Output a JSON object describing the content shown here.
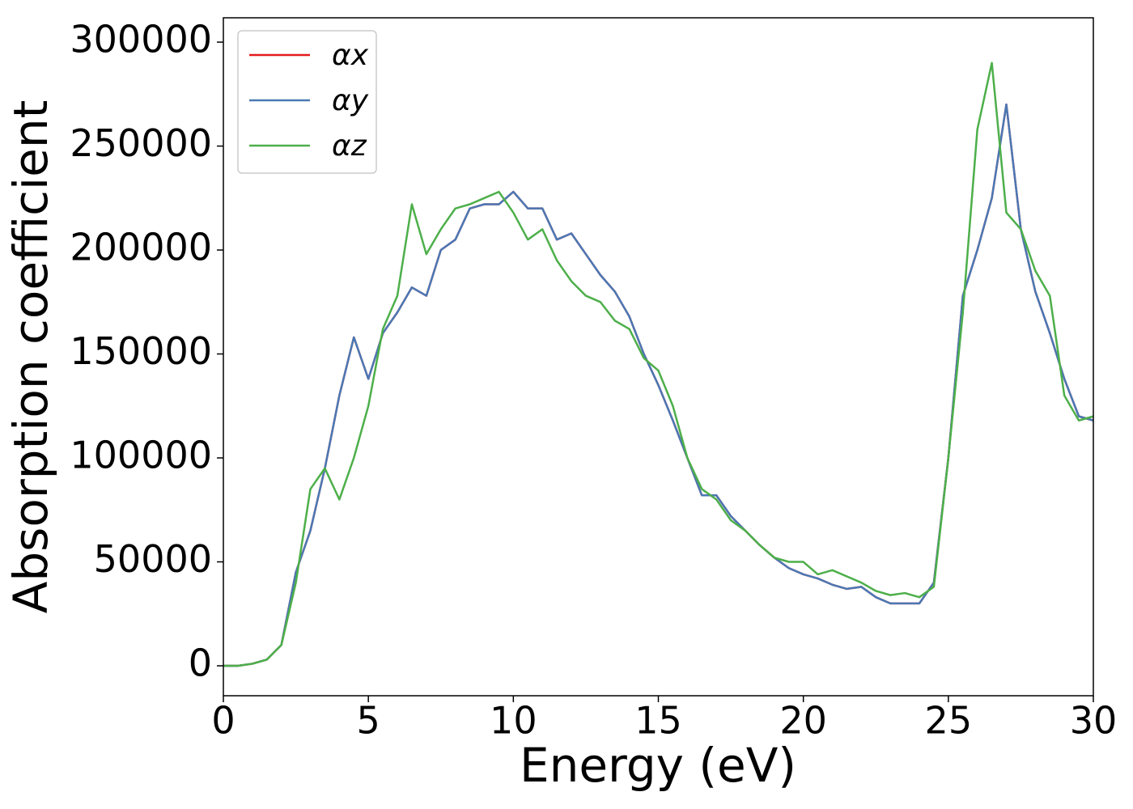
{
  "chart_data": {
    "type": "line",
    "xlabel": "Energy (eV)",
    "ylabel": "Absorption coefficient",
    "x": [
      0,
      0.5,
      1,
      1.5,
      2,
      2.5,
      3,
      3.5,
      4,
      4.5,
      5,
      5.5,
      6,
      6.5,
      7,
      7.5,
      8,
      8.5,
      9,
      9.5,
      10,
      10.5,
      11,
      11.5,
      12,
      12.5,
      13,
      13.5,
      14,
      14.5,
      15,
      15.5,
      16,
      16.5,
      17,
      17.5,
      18,
      18.5,
      19,
      19.5,
      20,
      20.5,
      21,
      21.5,
      22,
      22.5,
      23,
      23.5,
      24,
      24.5,
      25,
      25.5,
      26,
      26.5,
      27,
      27.5,
      28,
      28.5,
      29,
      29.5,
      30
    ],
    "series": [
      {
        "name": "αx",
        "color": "#e41a1c",
        "values": [
          0,
          0,
          1000,
          3000,
          10000,
          45000,
          65000,
          95000,
          130000,
          158000,
          138000,
          160000,
          170000,
          182000,
          178000,
          200000,
          205000,
          220000,
          222000,
          222000,
          228000,
          220000,
          220000,
          205000,
          208000,
          198000,
          188000,
          180000,
          168000,
          150000,
          135000,
          118000,
          100000,
          82000,
          82000,
          72000,
          65000,
          58000,
          52000,
          47000,
          44000,
          42000,
          39000,
          37000,
          38000,
          33000,
          30000,
          30000,
          30000,
          40000,
          100000,
          178000,
          200000,
          225000,
          270000,
          210000,
          180000,
          160000,
          138000,
          120000,
          118000
        ]
      },
      {
        "name": "αy",
        "color": "#4a78b4",
        "values": [
          0,
          0,
          1000,
          3000,
          10000,
          45000,
          65000,
          95000,
          130000,
          158000,
          138000,
          160000,
          170000,
          182000,
          178000,
          200000,
          205000,
          220000,
          222000,
          222000,
          228000,
          220000,
          220000,
          205000,
          208000,
          198000,
          188000,
          180000,
          168000,
          150000,
          135000,
          118000,
          100000,
          82000,
          82000,
          72000,
          65000,
          58000,
          52000,
          47000,
          44000,
          42000,
          39000,
          37000,
          38000,
          33000,
          30000,
          30000,
          30000,
          40000,
          100000,
          178000,
          200000,
          225000,
          270000,
          210000,
          180000,
          160000,
          138000,
          120000,
          118000
        ]
      },
      {
        "name": "αz",
        "color": "#4daf4a",
        "values": [
          0,
          0,
          1000,
          3000,
          10000,
          40000,
          85000,
          95000,
          80000,
          100000,
          125000,
          162000,
          178000,
          222000,
          198000,
          210000,
          220000,
          222000,
          225000,
          228000,
          218000,
          205000,
          210000,
          195000,
          185000,
          178000,
          175000,
          166000,
          162000,
          148000,
          142000,
          125000,
          100000,
          85000,
          80000,
          70000,
          65000,
          58000,
          52000,
          50000,
          50000,
          44000,
          46000,
          43000,
          40000,
          36000,
          34000,
          35000,
          33000,
          38000,
          100000,
          170000,
          258000,
          290000,
          218000,
          210000,
          190000,
          178000,
          130000,
          118000,
          120000
        ]
      }
    ],
    "xlim": [
      0,
      30
    ],
    "xticks": [
      0,
      5,
      10,
      15,
      20,
      25,
      30
    ],
    "ylim": [
      -14400,
      311700
    ],
    "yticks": [
      0,
      50000,
      100000,
      150000,
      200000,
      250000,
      300000
    ],
    "legend": "upper left",
    "grid": false
  }
}
